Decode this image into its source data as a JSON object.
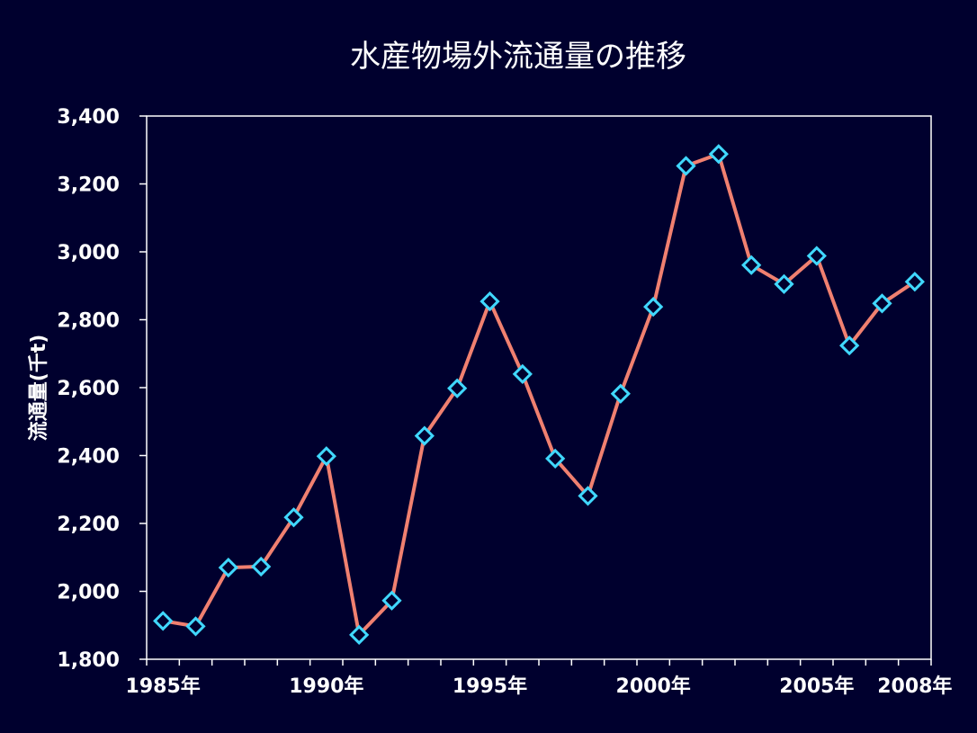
{
  "chart_data": {
    "type": "line",
    "title": "水産物場外流通量の推移",
    "ylabel": "流通量(千t)",
    "xlabel": "",
    "x": [
      1985,
      1986,
      1987,
      1988,
      1989,
      1990,
      1991,
      1992,
      1993,
      1994,
      1995,
      1996,
      1997,
      1998,
      1999,
      2000,
      2001,
      2002,
      2003,
      2004,
      2005,
      2006,
      2007,
      2008
    ],
    "series": [
      {
        "values": [
          1913,
          1897,
          2070,
          2073,
          2218,
          2398,
          1872,
          1973,
          2458,
          2598,
          2854,
          2640,
          2391,
          2281,
          2582,
          2838,
          3253,
          3288,
          2961,
          2905,
          2988,
          2724,
          2848,
          2912
        ],
        "color": "#f08070",
        "marker": "diamond",
        "marker_color": "#40d8ff"
      }
    ],
    "ylim": [
      1800,
      3400
    ],
    "yticks": [
      "1,800",
      "2,000",
      "2,200",
      "2,400",
      "2,600",
      "2,800",
      "3,000",
      "3,200",
      "3,400"
    ],
    "ytick_values": [
      1800,
      2000,
      2200,
      2400,
      2600,
      2800,
      3000,
      3200,
      3400
    ],
    "xticklabels": [
      {
        "year": 1985,
        "label": "1985年"
      },
      {
        "year": 1990,
        "label": "1990年"
      },
      {
        "year": 1995,
        "label": "1995年"
      },
      {
        "year": 2000,
        "label": "2000年"
      },
      {
        "year": 2005,
        "label": "2005年"
      },
      {
        "year": 2008,
        "label": "2008年"
      }
    ],
    "grid": false,
    "legend": "none",
    "colors": {
      "background": "#00002e",
      "plot_border": "#ffffff",
      "text": "#ffffff"
    }
  }
}
